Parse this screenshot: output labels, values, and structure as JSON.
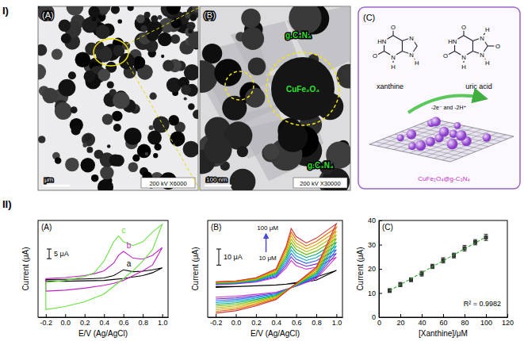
{
  "section_labels": [
    "I)",
    "II)"
  ],
  "micrographs": [
    {
      "title": "(A)",
      "scale_bar": "μm",
      "caption": "200 kV X6000"
    },
    {
      "title": "(B)",
      "scale_bar": "100 nm",
      "caption": "200 kV X30000",
      "annotations": [
        "g.C₃N₄",
        "CuFe₂O₄",
        "g.C₃N₄"
      ]
    }
  ],
  "scheme": {
    "title": "(C)",
    "reactant": {
      "name": "xanthine",
      "atoms": [
        "O",
        "HN",
        "O",
        "N",
        "H",
        "N",
        "N",
        "H"
      ]
    },
    "product": {
      "name": "uric acid",
      "atoms": [
        "O",
        "HN",
        "O",
        "N",
        "H",
        "N",
        "H",
        "O",
        "N",
        "H"
      ]
    },
    "arrow_label": "-2e⁻ and -2H⁺",
    "catalyst": "CuFe₂O₄@g-C₃N₄"
  },
  "chart_data": [
    {
      "type": "line",
      "title": "(A)",
      "x_label": "E/V (Ag/AgCl)",
      "y_label": "Current (μA)",
      "x": [
        -0.2,
        0,
        0.2,
        0.3,
        0.4,
        0.5,
        0.55,
        0.6,
        0.7,
        0.8,
        0.9,
        1,
        0.9,
        0.8,
        0.7,
        0.6,
        0.5,
        0.4,
        0.2,
        0,
        -0.2,
        -0.2
      ],
      "series": [
        {
          "name": "a",
          "color": "#000000",
          "values": [
            4.5,
            4.6,
            4.8,
            5,
            5.3,
            6.5,
            8,
            9.5,
            8.5,
            8.8,
            9.5,
            10.5,
            8,
            6.5,
            5.8,
            5,
            4.5,
            4,
            3.8,
            3.6,
            3.8,
            4.5
          ]
        },
        {
          "name": "b",
          "color": "#c21fc2",
          "values": [
            5,
            5.5,
            6.5,
            7.5,
            9,
            13,
            17,
            19,
            15.5,
            15,
            17,
            21,
            12,
            9,
            6.5,
            4,
            2.5,
            1.5,
            0,
            -1,
            -1.5,
            5
          ]
        },
        {
          "name": "c",
          "color": "#66e23c",
          "values": [
            3,
            4,
            6,
            8,
            14,
            24,
            27,
            24,
            22,
            24,
            29,
            33,
            20,
            14,
            9,
            5,
            1,
            -3,
            -7,
            -9.5,
            -11,
            3
          ]
        }
      ],
      "xlim": [
        -0.28,
        1.06
      ],
      "xticks": [
        -0.2,
        {
          "value": 0,
          "label": "0.0"
        },
        0.2,
        0.4,
        0.6,
        0.8,
        {
          "value": 1,
          "label": "1.0"
        }
      ],
      "ylim": [
        -15,
        35
      ],
      "tick_labels": "x",
      "scale_bar": {
        "value": 5,
        "label": "5 μA"
      }
    },
    {
      "type": "line",
      "title": "(B)",
      "x_label": "E/V (Ag/AgCl)",
      "y_label": "Current (μA)",
      "x": [
        -0.2,
        0,
        0.2,
        0.4,
        0.5,
        0.55,
        0.6,
        0.7,
        0.8,
        1,
        0.8,
        0.6,
        0.4,
        0.2,
        0,
        -0.2
      ],
      "series": [
        {
          "color": "#000000",
          "values": [
            -6,
            -6,
            -5.5,
            -5,
            -4.5,
            -4,
            -3.5,
            -2,
            0,
            4,
            -2,
            -4,
            -5,
            -5.5,
            -6,
            -6.5
          ]
        },
        {
          "color": "#cc33cc",
          "values": [
            -4.8,
            -4.3,
            -3.2,
            -0.4,
            5.5,
            10.2,
            7,
            4.8,
            6,
            12.3,
            -1.2,
            -5.8,
            -9.5,
            -10.8,
            -12,
            -12.6
          ]
        },
        {
          "color": "#6633cc",
          "values": [
            -4.6,
            -4.1,
            -2.9,
            0.2,
            7,
            12.4,
            9,
            6.6,
            8,
            14.6,
            -0.4,
            -5.6,
            -10,
            -11.6,
            -13,
            -13.7
          ]
        },
        {
          "color": "#3366ff",
          "values": [
            -4.4,
            -3.9,
            -2.6,
            0.8,
            8.5,
            14.6,
            11,
            8.4,
            10,
            16.9,
            0.4,
            -5.4,
            -10.5,
            -12.4,
            -14,
            -14.8
          ]
        },
        {
          "color": "#00aacc",
          "values": [
            -4.2,
            -3.7,
            -2.3,
            1.4,
            10,
            16.8,
            13,
            10.2,
            12,
            19.2,
            1.2,
            -5.2,
            -11,
            -13.2,
            -15,
            -15.9
          ]
        },
        {
          "color": "#00aa66",
          "values": [
            -4,
            -3.5,
            -2,
            2,
            11.5,
            19,
            15,
            12,
            14,
            21.5,
            2,
            -5,
            -11.5,
            -14,
            -16,
            -17
          ]
        },
        {
          "color": "#66bb00",
          "values": [
            -3.8,
            -3.3,
            -1.7,
            2.6,
            13,
            21.2,
            17,
            13.8,
            16,
            23.8,
            2.8,
            -4.8,
            -12,
            -14.8,
            -17,
            -18.1
          ]
        },
        {
          "color": "#aabb00",
          "values": [
            -3.6,
            -3.1,
            -1.4,
            3.2,
            14.5,
            23.4,
            19,
            15.6,
            18,
            26.1,
            3.6,
            -4.6,
            -12.5,
            -15.6,
            -18,
            -19.2
          ]
        },
        {
          "color": "#ddaa00",
          "values": [
            -3.4,
            -2.9,
            -1.1,
            3.8,
            16,
            25.6,
            21,
            17.4,
            20,
            28.4,
            4.4,
            -4.4,
            -13,
            -16.4,
            -19,
            -20.3
          ]
        },
        {
          "color": "#ee6600",
          "values": [
            -3.2,
            -2.7,
            -0.8,
            4.4,
            17.5,
            27.8,
            23,
            19.2,
            22,
            30.7,
            5.2,
            -4.2,
            -13.5,
            -17.2,
            -20,
            -21.4
          ]
        },
        {
          "color": "#cc3333",
          "values": [
            -3,
            -2.5,
            -0.5,
            5,
            19,
            30,
            25,
            21,
            24,
            33,
            6,
            -4,
            -14,
            -18,
            -21,
            -22.5
          ]
        }
      ],
      "xlim": [
        -0.28,
        1.06
      ],
      "xticks": [
        -0.2,
        {
          "value": 0,
          "label": "0.0"
        },
        0.2,
        0.4,
        0.6,
        0.8,
        {
          "value": 1,
          "label": "1.0"
        }
      ],
      "ylim": [
        -25,
        35
      ],
      "tick_labels": "x",
      "scale_bar": {
        "value": 10,
        "label": "10 μA"
      },
      "annotations": [
        "10 μM",
        "100 μM"
      ]
    },
    {
      "type": "scatter",
      "title": "(C)",
      "x_label": "[Xanthine]/μM",
      "y_label": "Current (μA)",
      "x": [
        10,
        20,
        30,
        40,
        50,
        60,
        70,
        80,
        90,
        100
      ],
      "series": [
        {
          "type": "scatter",
          "color": "#333333",
          "marker": "square",
          "values": [
            11,
            13.5,
            15.5,
            18,
            21,
            23.5,
            25.5,
            28.5,
            31,
            33
          ],
          "errors": [
            0.8,
            0.9,
            0.8,
            1,
            0.9,
            1.1,
            1,
            1.2,
            1.1,
            1.3
          ]
        },
        {
          "type": "line",
          "color": "#33aa33",
          "line_style": "dashed",
          "values": [
            11,
            13.5,
            15.9,
            18.4,
            20.9,
            23.3,
            25.8,
            28.3,
            30.7,
            33.2
          ]
        }
      ],
      "xlim": [
        0,
        120
      ],
      "xticks": [
        0,
        20,
        40,
        60,
        80,
        100,
        120
      ],
      "ylim": [
        0,
        40
      ],
      "yticks": [
        0,
        10,
        20,
        30,
        40
      ],
      "annotations": [
        "R² = 0.9982"
      ]
    }
  ]
}
